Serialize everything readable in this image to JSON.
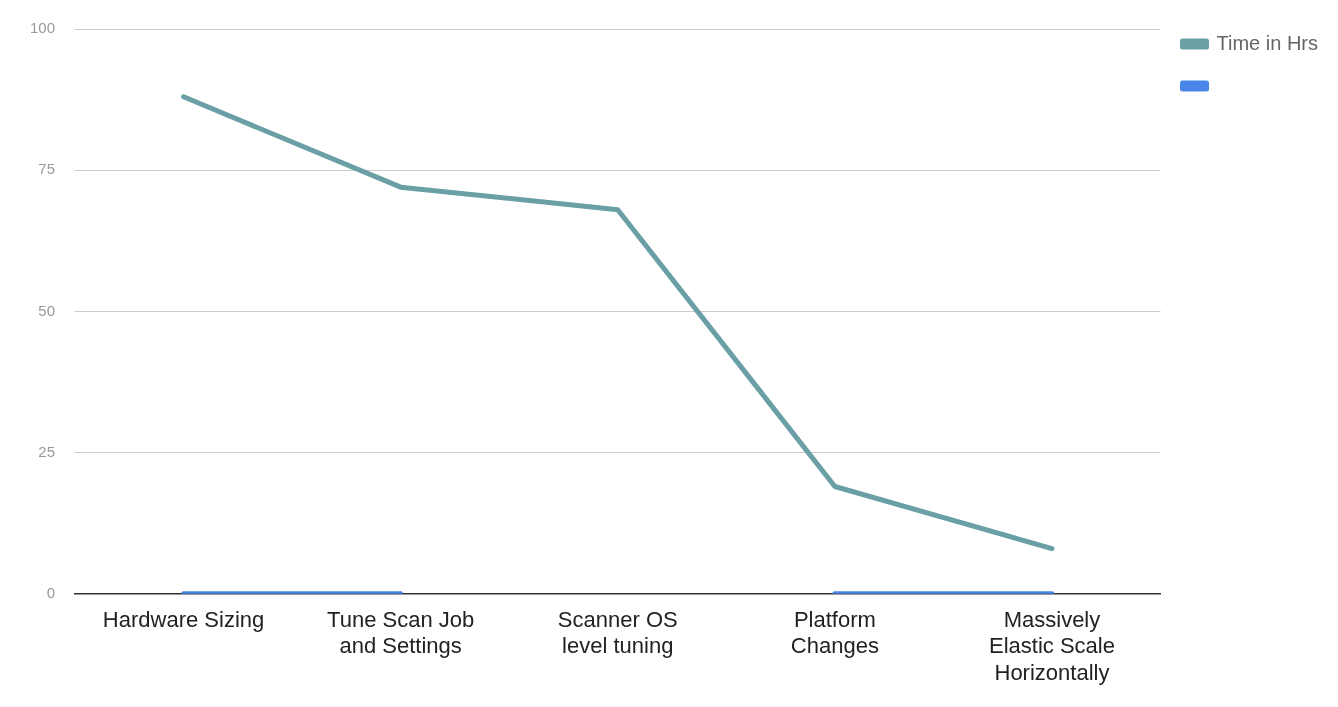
{
  "chart_data": {
    "type": "line",
    "categories": [
      "Hardware Sizing",
      "Tune Scan Job and Settings",
      "Scanner OS level tuning",
      "Platform Changes",
      "Massively Elastic Scale Horizontally"
    ],
    "series": [
      {
        "name": "Time in Hrs",
        "color": "#6a9fa6",
        "values": [
          88,
          72,
          68,
          19,
          8
        ]
      },
      {
        "color": "#4a86e8",
        "values": [
          0,
          0,
          null,
          0,
          0
        ]
      }
    ],
    "ylim": [
      0,
      100
    ],
    "yticks": [
      0,
      25,
      50,
      75,
      100
    ],
    "grid": "y",
    "legend": "top right",
    "marker": "none",
    "line_style": "solid"
  }
}
